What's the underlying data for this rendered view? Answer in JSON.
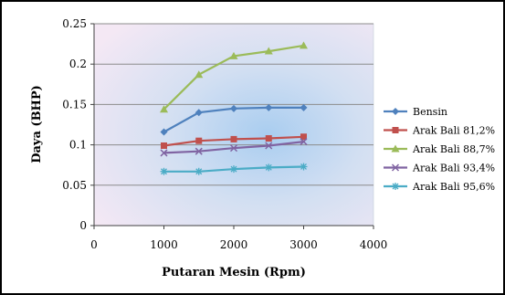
{
  "chart_data": {
    "type": "line",
    "title": "",
    "xlabel": "Putaran Mesin (Rpm)",
    "ylabel": "Daya (BHP)",
    "xlim": [
      0,
      4000
    ],
    "ylim": [
      0,
      0.25
    ],
    "x_ticks": [
      "0",
      "1000",
      "2000",
      "3000",
      "4000"
    ],
    "y_ticks": [
      "0",
      "0.05",
      "0.1",
      "0.15",
      "0.2",
      "0.25"
    ],
    "grid": "horizontal",
    "legend_position": "right",
    "x": [
      1000,
      1500,
      2000,
      2500,
      3000
    ],
    "series": [
      {
        "name": "Bensin",
        "color": "#4f81bd",
        "marker": "diamond",
        "values": [
          0.116,
          0.14,
          0.145,
          0.146,
          0.146
        ]
      },
      {
        "name": "Arak Bali 81,2%",
        "color": "#c0504d",
        "marker": "square",
        "values": [
          0.099,
          0.105,
          0.107,
          0.108,
          0.11
        ]
      },
      {
        "name": "Arak Bali 88,7%",
        "color": "#9bbb59",
        "marker": "triangle",
        "values": [
          0.144,
          0.187,
          0.21,
          0.216,
          0.223
        ]
      },
      {
        "name": "Arak Bali 93,4%",
        "color": "#8064a2",
        "marker": "x",
        "values": [
          0.09,
          0.092,
          0.096,
          0.099,
          0.104
        ]
      },
      {
        "name": "Arak Bali 95,6%",
        "color": "#4bacc6",
        "marker": "star",
        "values": [
          0.067,
          0.067,
          0.07,
          0.072,
          0.073
        ]
      }
    ]
  }
}
